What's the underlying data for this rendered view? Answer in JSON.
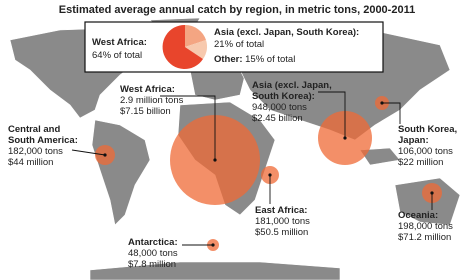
{
  "title": "Estimated average annual catch by region, in metric tons, 2000-2011",
  "legend": {
    "items": [
      {
        "name": "West Africa:",
        "share": "64% of total"
      },
      {
        "name": "Asia (excl. Japan, South Korea):",
        "share": "21% of total"
      },
      {
        "name": "Other:",
        "share": "15% of total"
      }
    ]
  },
  "regions": [
    {
      "name": [
        "West Africa:"
      ],
      "lines": [
        "2.9 million tons",
        "$7.15 billion"
      ]
    },
    {
      "name": [
        "Asia (excl. Japan,",
        "South Korea):"
      ],
      "lines": [
        "948,000 tons",
        "$2.45 billion"
      ]
    },
    {
      "name": [
        "South Korea,",
        "Japan:"
      ],
      "lines": [
        "106,000 tons",
        "$22 million"
      ]
    },
    {
      "name": [
        "Central and",
        "South America:"
      ],
      "lines": [
        "182,000 tons",
        "$44 million"
      ]
    },
    {
      "name": [
        "East Africa:"
      ],
      "lines": [
        "181,000 tons",
        "$50.5 million"
      ]
    },
    {
      "name": [
        "Oceania:"
      ],
      "lines": [
        "198,000 tons",
        "$71.2 million"
      ]
    },
    {
      "name": [
        "Antarctica:"
      ],
      "lines": [
        "48,000 tons",
        "$7.8 million"
      ]
    }
  ]
}
